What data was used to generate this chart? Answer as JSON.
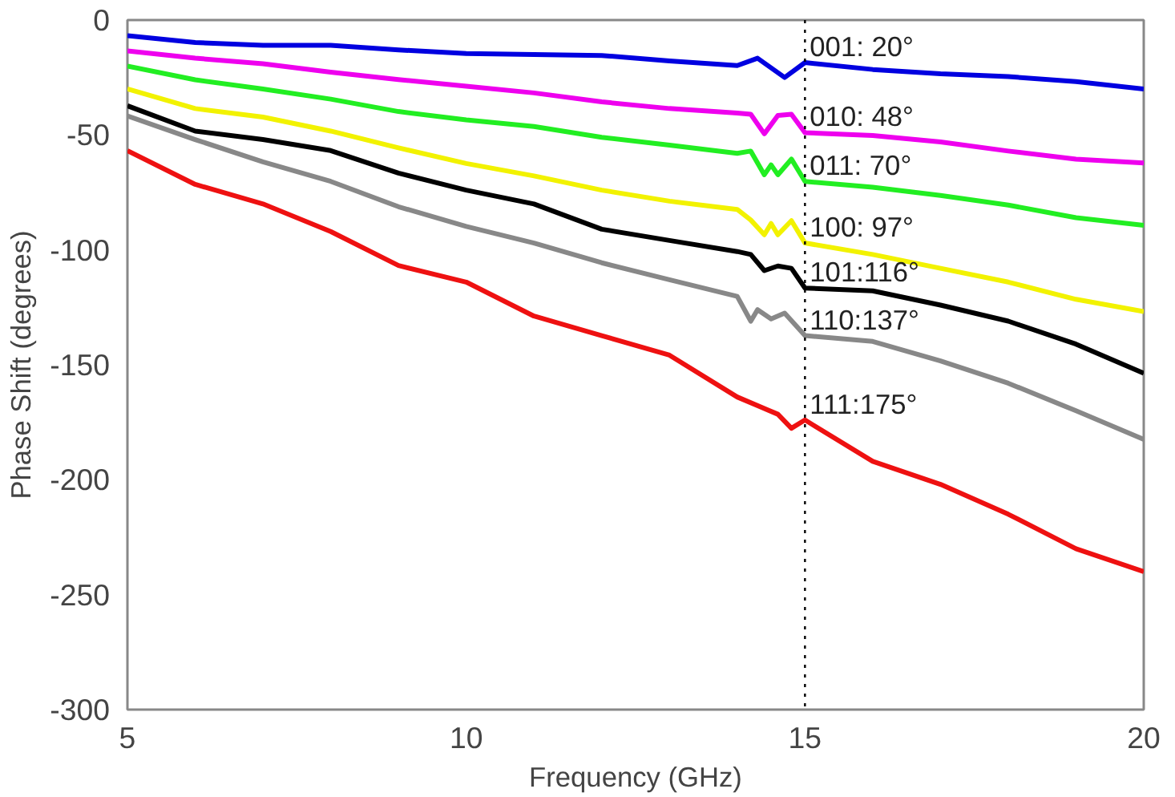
{
  "chart_data": {
    "type": "line",
    "xlabel": "Frequency (GHz)",
    "ylabel": "Phase Shift (degrees)",
    "xlim": [
      5,
      20
    ],
    "ylim": [
      -300,
      0
    ],
    "xticks": [
      5,
      10,
      15,
      20
    ],
    "yticks": [
      -300,
      -250,
      -200,
      -150,
      -100,
      -50,
      0
    ],
    "grid": false,
    "line_style": "solid",
    "marker": "none",
    "series": [
      {
        "color": "#0000e0",
        "x": [
          5,
          6,
          7,
          8,
          9,
          10,
          11,
          12,
          13,
          14,
          14.3,
          14.7,
          15,
          16,
          17,
          18,
          19,
          20
        ],
        "values": [
          -6.8,
          -9.8,
          -11,
          -11,
          -13,
          -14.6,
          -15,
          -15.4,
          -17.8,
          -19.8,
          -16.6,
          -25,
          -18.5,
          -21.5,
          -23.4,
          -24.6,
          -26.8,
          -30
        ]
      },
      {
        "color": "#ee00ee",
        "x": [
          5,
          6,
          7,
          8,
          9,
          10,
          11,
          12,
          13,
          14,
          14.2,
          14.4,
          14.6,
          14.8,
          15,
          16,
          17,
          18,
          19,
          20
        ],
        "values": [
          -13.4,
          -16.6,
          -19,
          -22.7,
          -25.9,
          -28.8,
          -31.7,
          -35.6,
          -38.5,
          -40.5,
          -41,
          -49.5,
          -41.5,
          -41,
          -49,
          -50.2,
          -53,
          -57,
          -60.5,
          -62.2
        ]
      },
      {
        "color": "#22ee22",
        "x": [
          5,
          6,
          7,
          8,
          9,
          10,
          11,
          12,
          13,
          14,
          14.2,
          14.4,
          14.5,
          14.6,
          14.8,
          15,
          16,
          17,
          18,
          19,
          20
        ],
        "values": [
          -20,
          -26,
          -30,
          -34.4,
          -39.8,
          -43.4,
          -46.3,
          -51,
          -54.4,
          -58,
          -57,
          -67.3,
          -63,
          -67.3,
          -60.5,
          -70.2,
          -72.7,
          -76.3,
          -80.5,
          -86,
          -89.3
        ]
      },
      {
        "color": "#f2f200",
        "x": [
          5,
          6,
          7,
          8,
          9,
          10,
          11,
          12,
          13,
          14,
          14.2,
          14.4,
          14.5,
          14.6,
          14.8,
          15,
          16,
          17,
          18,
          19,
          20
        ],
        "values": [
          -30,
          -38.5,
          -42.2,
          -48.3,
          -55.6,
          -62.4,
          -67.8,
          -74,
          -78.8,
          -82.4,
          -87,
          -93.4,
          -88.5,
          -93.4,
          -87.3,
          -97,
          -102,
          -108,
          -114,
          -121.5,
          -126.8
        ]
      },
      {
        "color": "#000000",
        "x": [
          5,
          6,
          7,
          8,
          9,
          10,
          11,
          12,
          13,
          14,
          14.2,
          14.4,
          14.6,
          14.8,
          15,
          16,
          17,
          18,
          19,
          20
        ],
        "values": [
          -37.3,
          -48.3,
          -52,
          -56.8,
          -66.6,
          -74,
          -80,
          -91,
          -95.9,
          -100.7,
          -102,
          -109,
          -107,
          -108,
          -116.6,
          -117.8,
          -124,
          -131,
          -141,
          -153.7
        ]
      },
      {
        "color": "#888888",
        "x": [
          5,
          6,
          7,
          8,
          9,
          10,
          11,
          12,
          13,
          14,
          14.2,
          14.3,
          14.5,
          14.7,
          15,
          16,
          17,
          18,
          19,
          20
        ],
        "values": [
          -41.7,
          -52,
          -61.7,
          -70.2,
          -81.2,
          -89.8,
          -97,
          -105.6,
          -113,
          -120.2,
          -131,
          -126,
          -130,
          -127.5,
          -137.3,
          -139.8,
          -148.3,
          -158,
          -170,
          -182.4
        ]
      },
      {
        "color": "#ee1111",
        "x": [
          5,
          6,
          7,
          8,
          9,
          10,
          11,
          12,
          13,
          14,
          14.6,
          14.8,
          15,
          16,
          17,
          18,
          19,
          20
        ],
        "values": [
          -56.8,
          -71.5,
          -80,
          -92,
          -106.8,
          -114,
          -128.8,
          -137.3,
          -145.8,
          -164,
          -171.5,
          -177.6,
          -174,
          -192,
          -202,
          -215,
          -230,
          -240
        ]
      }
    ],
    "ref_lines": [
      {
        "axis": "x",
        "value": 15,
        "color": "#000000",
        "line_style": "dotted"
      }
    ],
    "annotations": [
      "001: 20°",
      "010: 48°",
      "011: 70°",
      "100: 97°",
      "101:116°",
      "110:137°",
      "111:175°"
    ]
  }
}
